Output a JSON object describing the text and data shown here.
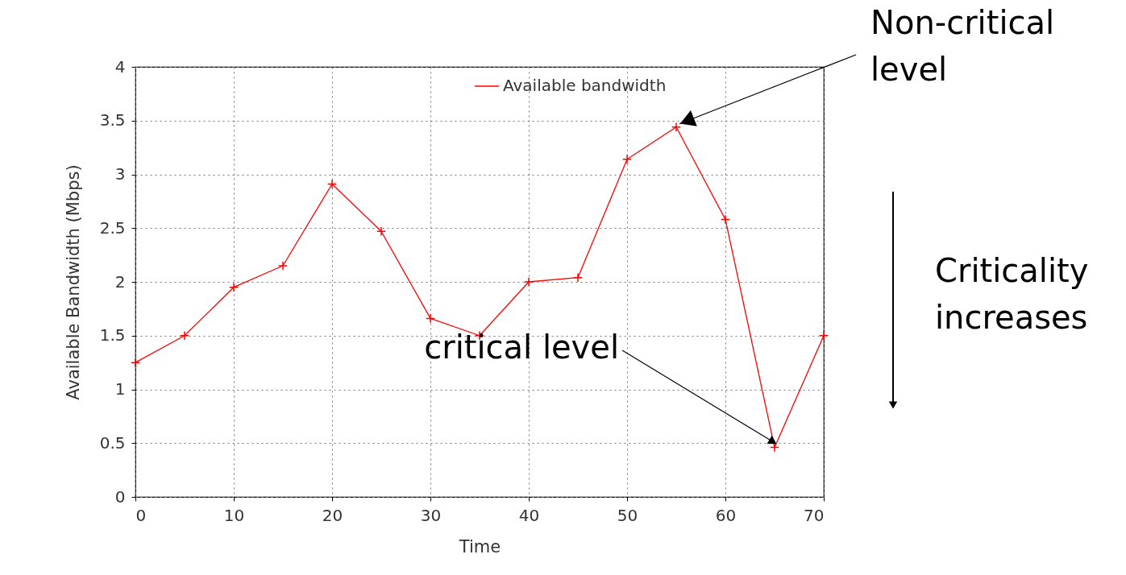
{
  "chart_data": {
    "type": "line",
    "xlabel": "Time",
    "ylabel": "Available Bandwidth (Mbps)",
    "x": [
      0,
      5,
      10,
      15,
      20,
      25,
      30,
      35,
      40,
      45,
      50,
      55,
      60,
      65,
      70
    ],
    "series": [
      {
        "name": "Available bandwidth",
        "color": "#ff0000",
        "values": [
          1.25,
          1.5,
          1.95,
          2.15,
          2.91,
          2.47,
          1.66,
          1.5,
          2.0,
          2.04,
          3.14,
          3.44,
          2.58,
          0.46,
          1.5
        ]
      }
    ],
    "xlim": [
      0,
      70
    ],
    "xticks": [
      0,
      10,
      20,
      30,
      40,
      50,
      60,
      70
    ],
    "ylim": [
      0,
      4
    ],
    "yticks": [
      0,
      0.5,
      1,
      1.5,
      2,
      2.5,
      3,
      3.5,
      4
    ],
    "grid": true,
    "legend": "top right",
    "marker": "cross",
    "line_style": "solid",
    "annotations": [
      {
        "text": "Non-critical level",
        "x": 55,
        "y": 3.44
      },
      {
        "text": "critical level",
        "x": 65,
        "y": 0.46
      },
      "Criticality increases"
    ]
  }
}
